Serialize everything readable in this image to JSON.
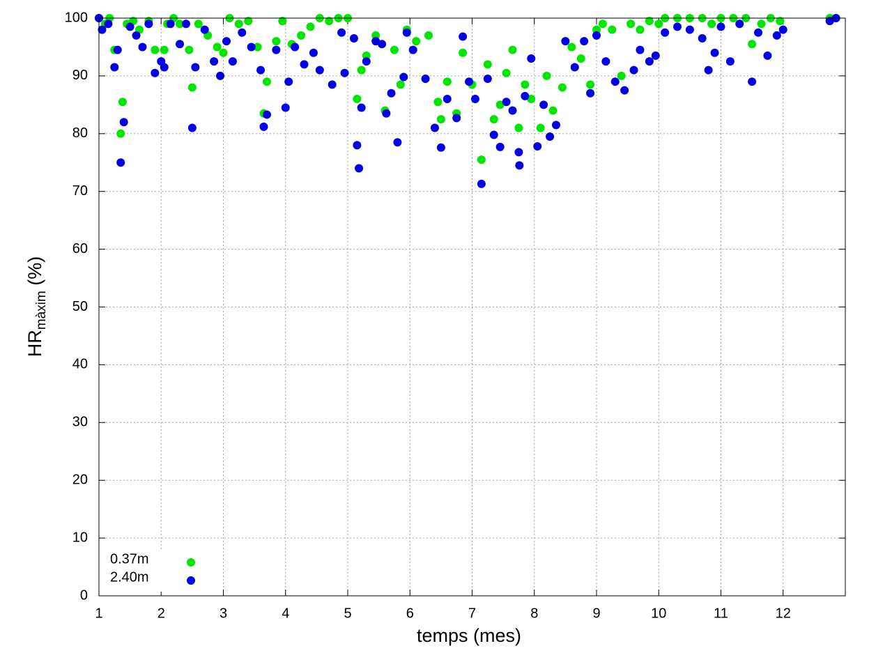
{
  "chart_data": {
    "type": "scatter",
    "x_label": "temps (mes)",
    "y_label": {
      "main": "HR",
      "sub": "màxim",
      "unit": "(%)"
    },
    "xlim": [
      1,
      13
    ],
    "xticks": [
      1,
      2,
      3,
      4,
      5,
      6,
      7,
      8,
      9,
      10,
      11,
      12
    ],
    "ylim": [
      0,
      100
    ],
    "yticks": [
      0,
      10,
      20,
      30,
      40,
      50,
      60,
      70,
      80,
      90,
      100
    ],
    "grid": true,
    "legend": "lower left",
    "series": [
      {
        "name": "0.37m",
        "color": "#00e600",
        "x": [
          1.0,
          1.1,
          1.17,
          1.25,
          1.35,
          1.38,
          1.45,
          1.55,
          1.65,
          1.8,
          1.9,
          2.05,
          2.1,
          2.2,
          2.3,
          2.45,
          2.5,
          2.6,
          2.75,
          2.9,
          3.0,
          3.1,
          3.25,
          3.4,
          3.55,
          3.65,
          3.7,
          3.85,
          3.95,
          4.1,
          4.25,
          4.4,
          4.55,
          4.7,
          4.85,
          5.0,
          5.15,
          5.22,
          5.3,
          5.45,
          5.6,
          5.75,
          5.85,
          5.95,
          6.1,
          6.3,
          6.45,
          6.5,
          6.6,
          6.75,
          6.85,
          7.0,
          7.15,
          7.25,
          7.35,
          7.45,
          7.55,
          7.65,
          7.75,
          7.85,
          7.95,
          8.1,
          8.2,
          8.3,
          8.45,
          8.6,
          8.75,
          8.9,
          9.0,
          9.1,
          9.25,
          9.4,
          9.55,
          9.7,
          9.85,
          10.0,
          10.1,
          10.3,
          10.5,
          10.7,
          10.85,
          11.0,
          11.2,
          11.4,
          11.5,
          11.65,
          11.8,
          11.95,
          12.75,
          12.85
        ],
        "values": [
          100,
          99,
          100,
          94.5,
          80,
          85.5,
          99,
          99.5,
          98,
          99.5,
          94.5,
          94.5,
          99,
          100,
          99,
          94.5,
          88,
          99,
          97,
          95,
          94,
          100,
          99,
          99.5,
          95,
          83.5,
          89,
          96,
          99.5,
          95.5,
          97,
          98.5,
          100,
          99.5,
          100,
          100,
          86,
          91,
          93.5,
          97,
          84,
          94.5,
          88.5,
          98,
          96,
          97,
          85.5,
          82.5,
          89,
          83.5,
          94,
          88.5,
          75.5,
          92,
          82.5,
          85,
          90.5,
          94.5,
          81,
          88.5,
          86,
          81,
          90,
          84,
          88,
          95,
          93,
          88.5,
          98,
          99,
          98,
          90,
          99,
          98,
          99.5,
          99,
          100,
          100,
          100,
          100,
          99,
          100,
          100,
          100,
          95.5,
          99,
          100,
          99.5,
          100,
          100
        ]
      },
      {
        "name": "2.40m",
        "color": "#0000e6",
        "x": [
          1.0,
          1.05,
          1.15,
          1.25,
          1.3,
          1.35,
          1.4,
          1.5,
          1.6,
          1.7,
          1.8,
          1.9,
          2.0,
          2.05,
          2.15,
          2.3,
          2.4,
          2.5,
          2.55,
          2.7,
          2.85,
          2.95,
          3.05,
          3.15,
          3.3,
          3.45,
          3.6,
          3.65,
          3.7,
          3.85,
          4.0,
          4.05,
          4.15,
          4.3,
          4.45,
          4.55,
          4.75,
          4.9,
          4.95,
          5.1,
          5.15,
          5.18,
          5.22,
          5.3,
          5.45,
          5.55,
          5.62,
          5.7,
          5.8,
          5.9,
          5.95,
          6.05,
          6.25,
          6.4,
          6.5,
          6.6,
          6.75,
          6.85,
          6.95,
          7.05,
          7.15,
          7.25,
          7.35,
          7.45,
          7.55,
          7.65,
          7.75,
          7.76,
          7.85,
          7.95,
          8.05,
          8.15,
          8.25,
          8.35,
          8.5,
          8.65,
          8.8,
          8.9,
          9.0,
          9.15,
          9.3,
          9.45,
          9.6,
          9.7,
          9.85,
          9.95,
          10.1,
          10.3,
          10.5,
          10.7,
          10.8,
          10.9,
          11.0,
          11.15,
          11.3,
          11.5,
          11.6,
          11.75,
          11.9,
          12.0,
          12.75,
          12.85
        ],
        "values": [
          100,
          98,
          99,
          91.5,
          94.5,
          75,
          82,
          98.5,
          97,
          95,
          99,
          90.5,
          92.5,
          91.5,
          99,
          95.5,
          99,
          81,
          91.5,
          98,
          92.5,
          90,
          96,
          92.5,
          97.5,
          95,
          91,
          81.2,
          83.3,
          94.5,
          84.5,
          89,
          95,
          92,
          94,
          91,
          88.5,
          97.5,
          90.5,
          96.5,
          78,
          74,
          84.5,
          92.5,
          96,
          95.5,
          83.5,
          87,
          78.5,
          89.8,
          97.5,
          94.5,
          89.5,
          81,
          77.6,
          86,
          82.7,
          96.8,
          89,
          86,
          71.3,
          89.5,
          79.8,
          77.7,
          85.5,
          84,
          76.8,
          74.5,
          86.5,
          93,
          77.8,
          85,
          79.5,
          81.5,
          96,
          91.5,
          96,
          87,
          97,
          92.5,
          89,
          87.5,
          91,
          94.5,
          92.5,
          93.5,
          97.5,
          98.5,
          98,
          96.5,
          91,
          94,
          98.5,
          92.5,
          99,
          89,
          97.5,
          93.5,
          97,
          98,
          99.5,
          100
        ]
      }
    ]
  }
}
